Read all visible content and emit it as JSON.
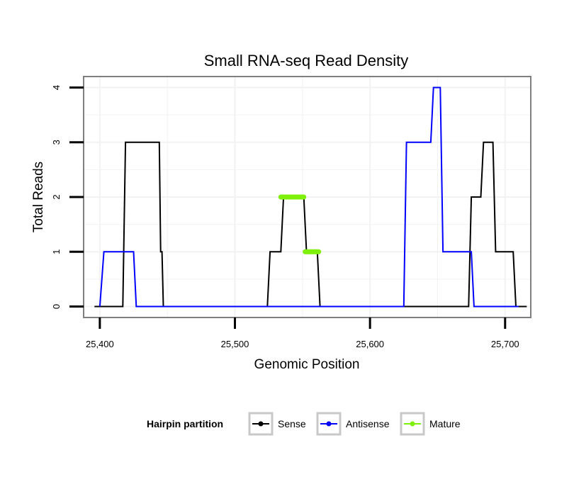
{
  "chart_data": {
    "type": "line",
    "title": "Small RNA-seq Read Density",
    "xlabel": "Genomic Position",
    "ylabel": "Total Reads",
    "xlim": [
      25388,
      25719
    ],
    "ylim": [
      -0.2,
      4.2
    ],
    "x_ticks": [
      25400,
      25500,
      25600,
      25700
    ],
    "x_tick_labels": [
      "25,400",
      "25,500",
      "25,600",
      "25,700"
    ],
    "y_ticks": [
      0,
      1,
      2,
      3,
      4
    ],
    "y_tick_labels": [
      "0",
      "1",
      "2",
      "3",
      "4"
    ],
    "grid": true,
    "legend": {
      "title": "Hairpin partition",
      "position": "bottom",
      "entries": [
        "Sense",
        "Antisense",
        "Mature"
      ]
    },
    "series": [
      {
        "name": "Sense",
        "color": "#000000",
        "width": 2,
        "points": [
          [
            25396,
            0
          ],
          [
            25417,
            0
          ],
          [
            25419,
            3
          ],
          [
            25444,
            3
          ],
          [
            25445,
            1
          ],
          [
            25446,
            1
          ],
          [
            25447,
            0
          ],
          [
            25524,
            0
          ],
          [
            25526,
            1
          ],
          [
            25534,
            1
          ],
          [
            25536,
            2
          ],
          [
            25551,
            2
          ],
          [
            25553,
            1
          ],
          [
            25561,
            1
          ],
          [
            25563,
            0
          ],
          [
            25673,
            0
          ],
          [
            25675,
            2
          ],
          [
            25682,
            2
          ],
          [
            25684,
            3
          ],
          [
            25691,
            3
          ],
          [
            25693,
            1
          ],
          [
            25706,
            1
          ],
          [
            25708,
            0
          ],
          [
            25716,
            0
          ]
        ]
      },
      {
        "name": "Antisense",
        "color": "#0000ff",
        "width": 2,
        "points": [
          [
            25400,
            0
          ],
          [
            25403,
            1
          ],
          [
            25425,
            1
          ],
          [
            25427,
            0
          ],
          [
            25625,
            0
          ],
          [
            25627,
            3
          ],
          [
            25645,
            3
          ],
          [
            25647,
            4
          ],
          [
            25652,
            4
          ],
          [
            25654,
            1
          ],
          [
            25675,
            1
          ],
          [
            25677,
            0
          ],
          [
            25710,
            0
          ]
        ]
      },
      {
        "name": "Mature",
        "color": "#7ff00a",
        "width": 7,
        "segments": [
          [
            [
              25534,
              2
            ],
            [
              25551,
              2
            ]
          ],
          [
            [
              25552,
              1
            ],
            [
              25562,
              1
            ]
          ]
        ]
      }
    ]
  }
}
